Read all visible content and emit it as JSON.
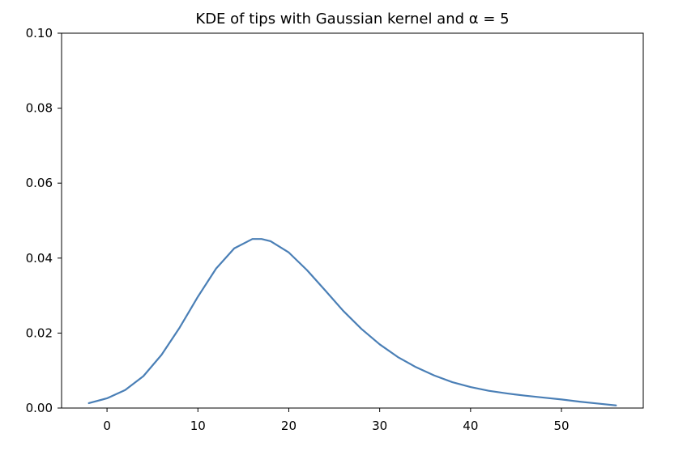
{
  "chart_data": {
    "type": "line",
    "title": "KDE of tips with Gaussian kernel and α = 5",
    "xlabel": "",
    "ylabel": "",
    "xlim": [
      -5,
      59
    ],
    "ylim": [
      0.0,
      0.1
    ],
    "grid": false,
    "x_ticks": [
      0,
      10,
      20,
      30,
      40,
      50
    ],
    "x_tick_labels": [
      "0",
      "10",
      "20",
      "30",
      "40",
      "50"
    ],
    "y_ticks": [
      0.0,
      0.02,
      0.04,
      0.06,
      0.08,
      0.1
    ],
    "y_tick_labels": [
      "0.00",
      "0.02",
      "0.04",
      "0.06",
      "0.08",
      "0.10"
    ],
    "series": [
      {
        "color": "#4a7fb6",
        "x": [
          -2,
          0,
          2,
          4,
          6,
          8,
          10,
          12,
          14,
          16,
          17,
          18,
          20,
          22,
          24,
          26,
          28,
          30,
          32,
          34,
          36,
          38,
          40,
          42,
          44,
          46,
          48,
          50,
          52,
          54,
          56
        ],
        "y": [
          0.0013,
          0.0026,
          0.0048,
          0.0085,
          0.0142,
          0.0215,
          0.0297,
          0.0372,
          0.0426,
          0.0451,
          0.0451,
          0.0445,
          0.0415,
          0.0368,
          0.0314,
          0.0259,
          0.0211,
          0.017,
          0.0136,
          0.0109,
          0.0087,
          0.0069,
          0.0056,
          0.0046,
          0.0039,
          0.0033,
          0.0028,
          0.0023,
          0.0017,
          0.0012,
          0.0007
        ]
      }
    ]
  }
}
